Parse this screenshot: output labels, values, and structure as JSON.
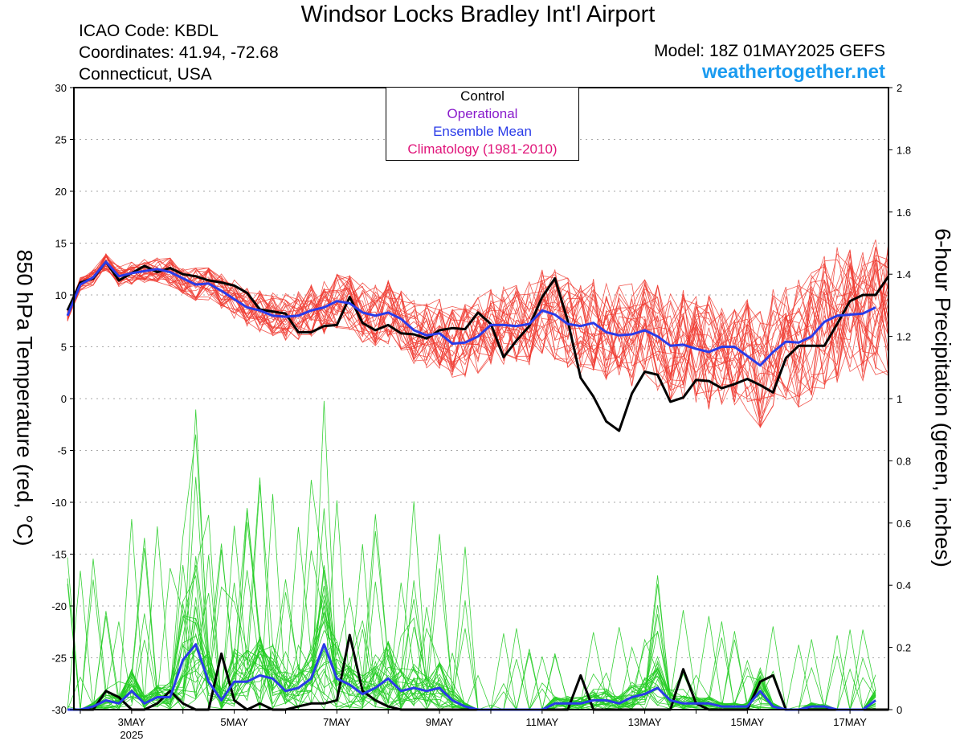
{
  "header": {
    "title": "Windsor Locks Bradley Int'l Airport",
    "icao": "ICAO Code: KBDL",
    "coordinates": "Coordinates: 41.94, -72.68",
    "region": "Connecticut, USA",
    "model": "Model: 18Z 01MAY2025 GEFS",
    "site": "weathertogether.net"
  },
  "legend": [
    {
      "label": "Control",
      "color": "#000000"
    },
    {
      "label": "Operational",
      "color": "#8a1ccc"
    },
    {
      "label": "Ensemble Mean",
      "color": "#2a3be8"
    },
    {
      "label": "Climatology (1981-2010)",
      "color": "#e0157a"
    }
  ],
  "colors": {
    "temperature_members": "#f03c32",
    "precip_members": "#22cc22",
    "control": "#000000",
    "ensemble_mean": "#2a3be8",
    "grid": "#aaaaaa",
    "site": "#1a9bf0"
  },
  "chart_data": {
    "type": "line",
    "ylabel": "850 hPa Temperature (red, °C)",
    "y2label": "6-hour Precipitation (green, inches)",
    "ylim": [
      -30,
      30
    ],
    "y2lim": [
      0,
      2
    ],
    "yticks": [
      30,
      25,
      20,
      15,
      10,
      5,
      0,
      -5,
      -10,
      -15,
      -20,
      -25,
      -30
    ],
    "y2ticks": [
      "2",
      "1.8",
      "1.6",
      "1.4",
      "1.2",
      "1",
      "0.8",
      "0.6",
      "0.4",
      "0.2",
      "0"
    ],
    "xlim": [
      1.875,
      17.75
    ],
    "xticks": [
      {
        "day": 3,
        "label": "3MAY",
        "sub": "2025"
      },
      {
        "day": 5,
        "label": "5MAY"
      },
      {
        "day": 7,
        "label": "7MAY"
      },
      {
        "day": 9,
        "label": "9MAY"
      },
      {
        "day": 11,
        "label": "11MAY"
      },
      {
        "day": 13,
        "label": "13MAY"
      },
      {
        "day": 15,
        "label": "15MAY"
      },
      {
        "day": 17,
        "label": "17MAY"
      }
    ],
    "grid": "dotted horizontal",
    "legend_position": "top-center",
    "x_start_day": 1.75,
    "x_step_days": 0.25,
    "control_temp": [
      8.5,
      11.2,
      11.6,
      13.2,
      11.4,
      12.1,
      12.8,
      12.2,
      12.6,
      12.0,
      11.8,
      11.4,
      11.2,
      10.9,
      10.2,
      8.6,
      8.4,
      8.2,
      6.4,
      6.4,
      7.0,
      7.1,
      9.8,
      7.3,
      6.6,
      7.1,
      6.3,
      6.2,
      5.8,
      6.6,
      6.8,
      6.7,
      8.3,
      7.2,
      4.0,
      5.6,
      7.0,
      9.8,
      11.6,
      7.5,
      2.0,
      0.2,
      -2.2,
      -3.1,
      0.5,
      2.6,
      2.3,
      -0.3,
      0.1,
      1.8,
      1.7,
      1.0,
      1.4,
      1.9,
      1.3,
      0.6,
      3.9,
      5.1,
      5.1,
      5.1,
      7.2,
      9.4,
      10.0,
      10.0,
      11.8
    ],
    "mean_temp": [
      8.0,
      11.0,
      11.7,
      13.2,
      11.8,
      12.1,
      12.3,
      12.5,
      12.2,
      11.6,
      11.0,
      11.1,
      10.4,
      9.6,
      8.8,
      8.5,
      8.0,
      7.9,
      8.0,
      8.5,
      8.8,
      9.4,
      9.2,
      8.3,
      8.0,
      8.3,
      7.7,
      6.6,
      6.1,
      6.3,
      5.3,
      5.4,
      6.0,
      7.1,
      7.1,
      7.0,
      7.2,
      8.5,
      8.1,
      7.2,
      7.0,
      7.3,
      6.4,
      6.1,
      6.2,
      6.6,
      6.0,
      5.1,
      5.2,
      4.8,
      4.5,
      5.0,
      5.0,
      4.1,
      3.2,
      4.5,
      5.5,
      5.4,
      6.0,
      7.4,
      8.0,
      8.1,
      8.2,
      8.8
    ],
    "control_precip": [
      0,
      0,
      0,
      0.06,
      0.04,
      0,
      0,
      0.02,
      0.06,
      0.02,
      0,
      0,
      0.18,
      0.03,
      0,
      0.02,
      0,
      0,
      0.01,
      0.02,
      0.02,
      0.03,
      0.24,
      0.06,
      0.03,
      0.01,
      0,
      0,
      0,
      0,
      0,
      0,
      0,
      0,
      0,
      0,
      0,
      0,
      0,
      0,
      0.11,
      0,
      0,
      0,
      0,
      0,
      0,
      0,
      0.13,
      0.02,
      0,
      0,
      0,
      0,
      0.09,
      0.11,
      0,
      0,
      0,
      0,
      0,
      0,
      0,
      0,
      0
    ],
    "mean_precip": [
      0,
      0,
      0.01,
      0.03,
      0.02,
      0.06,
      0.02,
      0.04,
      0.04,
      0.16,
      0.21,
      0.09,
      0.03,
      0.09,
      0.09,
      0.11,
      0.1,
      0.06,
      0.07,
      0.1,
      0.21,
      0.1,
      0.08,
      0.05,
      0.07,
      0.1,
      0.06,
      0.07,
      0.06,
      0.07,
      0.03,
      0.01,
      0,
      0,
      0,
      0,
      0,
      0,
      0.02,
      0.02,
      0.02,
      0.03,
      0.03,
      0.02,
      0.04,
      0.05,
      0.07,
      0.03,
      0.02,
      0.02,
      0.02,
      0.01,
      0.01,
      0.01,
      0.06,
      0.01,
      0,
      0,
      0.01,
      0.01,
      0,
      0,
      0,
      0.03
    ],
    "member_count": 30
  }
}
